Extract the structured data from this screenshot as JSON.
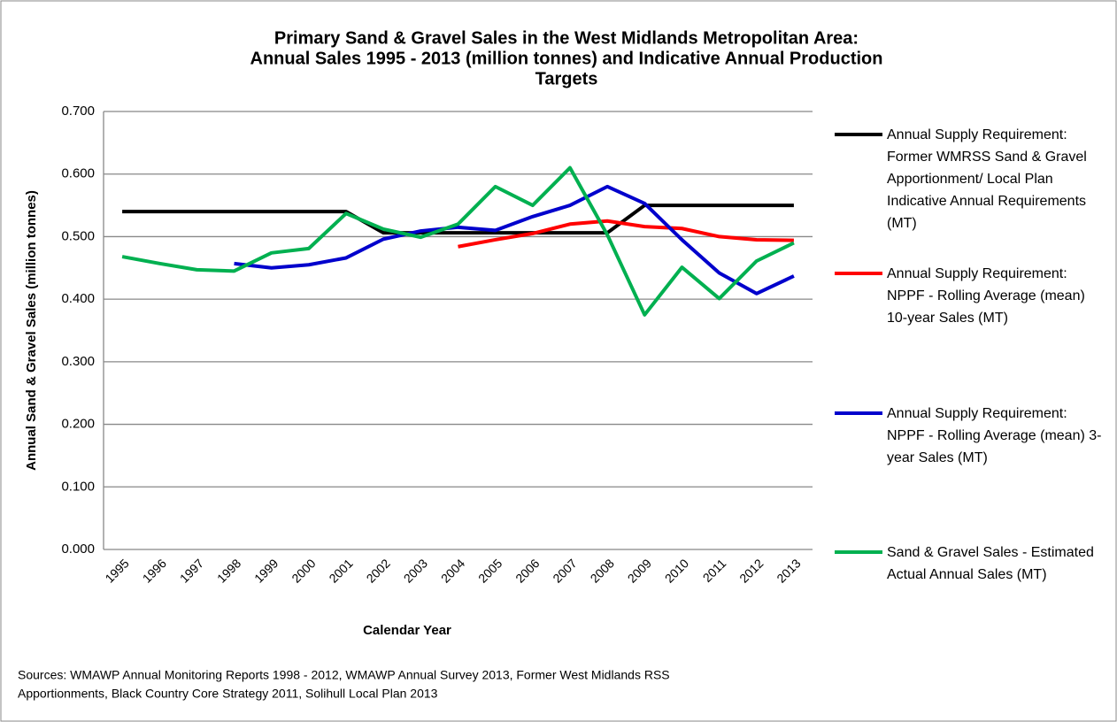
{
  "chart_data": {
    "type": "line",
    "title": [
      "Primary Sand & Gravel Sales in the West Midlands Metropolitan Area:",
      "Annual Sales 1995 - 2013 (million tonnes) and Indicative Annual Production",
      "Targets"
    ],
    "y_label": "Annual Sand & Gravel Sales (million tonnes)",
    "x_label": "Calendar Year",
    "note": [
      "Sources: WMAWP Annual Monitoring Reports 1998 - 2012, WMAWP Annual Survey 2013, Former West Midlands RSS",
      "Apportionments, Black Country Core Strategy 2011, Solihull Local Plan 2013"
    ],
    "categories": [
      "1995",
      "1996",
      "1997",
      "1998",
      "1999",
      "2000",
      "2001",
      "2002",
      "2003",
      "2004",
      "2005",
      "2006",
      "2007",
      "2008",
      "2009",
      "2010",
      "2011",
      "2012",
      "2013"
    ],
    "series": [
      {
        "name": "Annual Supply Requirement: Former WMRSS Sand & Gravel Apportionment/ Local Plan Indicative Annual Requirements (MT)",
        "color": "#000000",
        "values": [
          0.54,
          0.54,
          0.54,
          0.54,
          0.54,
          0.54,
          0.54,
          0.506,
          0.506,
          0.506,
          0.506,
          0.506,
          0.506,
          0.506,
          0.55,
          0.55,
          0.55,
          0.55,
          0.55
        ]
      },
      {
        "name": "Annual Supply Requirement: NPPF - Rolling Average (mean) 10-year Sales (MT)",
        "color": "#ff0000",
        "values": [
          null,
          null,
          null,
          null,
          null,
          null,
          null,
          null,
          null,
          0.484,
          0.495,
          0.505,
          0.52,
          0.525,
          0.516,
          0.513,
          0.5,
          0.495,
          0.494
        ]
      },
      {
        "name": "Annual Supply Requirement: NPPF - Rolling Average (mean) 3-year Sales (MT)",
        "color": "#0000cc",
        "values": [
          null,
          null,
          null,
          0.457,
          0.45,
          0.455,
          0.466,
          0.496,
          0.509,
          0.515,
          0.51,
          0.532,
          0.55,
          0.58,
          0.553,
          0.495,
          0.442,
          0.409,
          0.437
        ]
      },
      {
        "name": "Sand & Gravel Sales - Estimated Actual Annual Sales (MT)",
        "color": "#00b050",
        "values": [
          0.468,
          0.457,
          0.447,
          0.445,
          0.474,
          0.481,
          0.537,
          0.512,
          0.499,
          0.52,
          0.58,
          0.55,
          0.61,
          0.503,
          0.375,
          0.451,
          0.401,
          0.461,
          0.49
        ]
      }
    ],
    "ylim": [
      0,
      0.7
    ],
    "yticks": [
      {
        "value": 0,
        "label": "0.000"
      },
      {
        "value": 0.1,
        "label": "0.100"
      },
      {
        "value": 0.2,
        "label": "0.200"
      },
      {
        "value": 0.3,
        "label": "0.300"
      },
      {
        "value": 0.4,
        "label": "0.400"
      },
      {
        "value": 0.5,
        "label": "0.500"
      },
      {
        "value": 0.6,
        "label": "0.600"
      },
      {
        "value": 0.7,
        "label": "0.700"
      }
    ],
    "grid": true,
    "legend": "right"
  }
}
